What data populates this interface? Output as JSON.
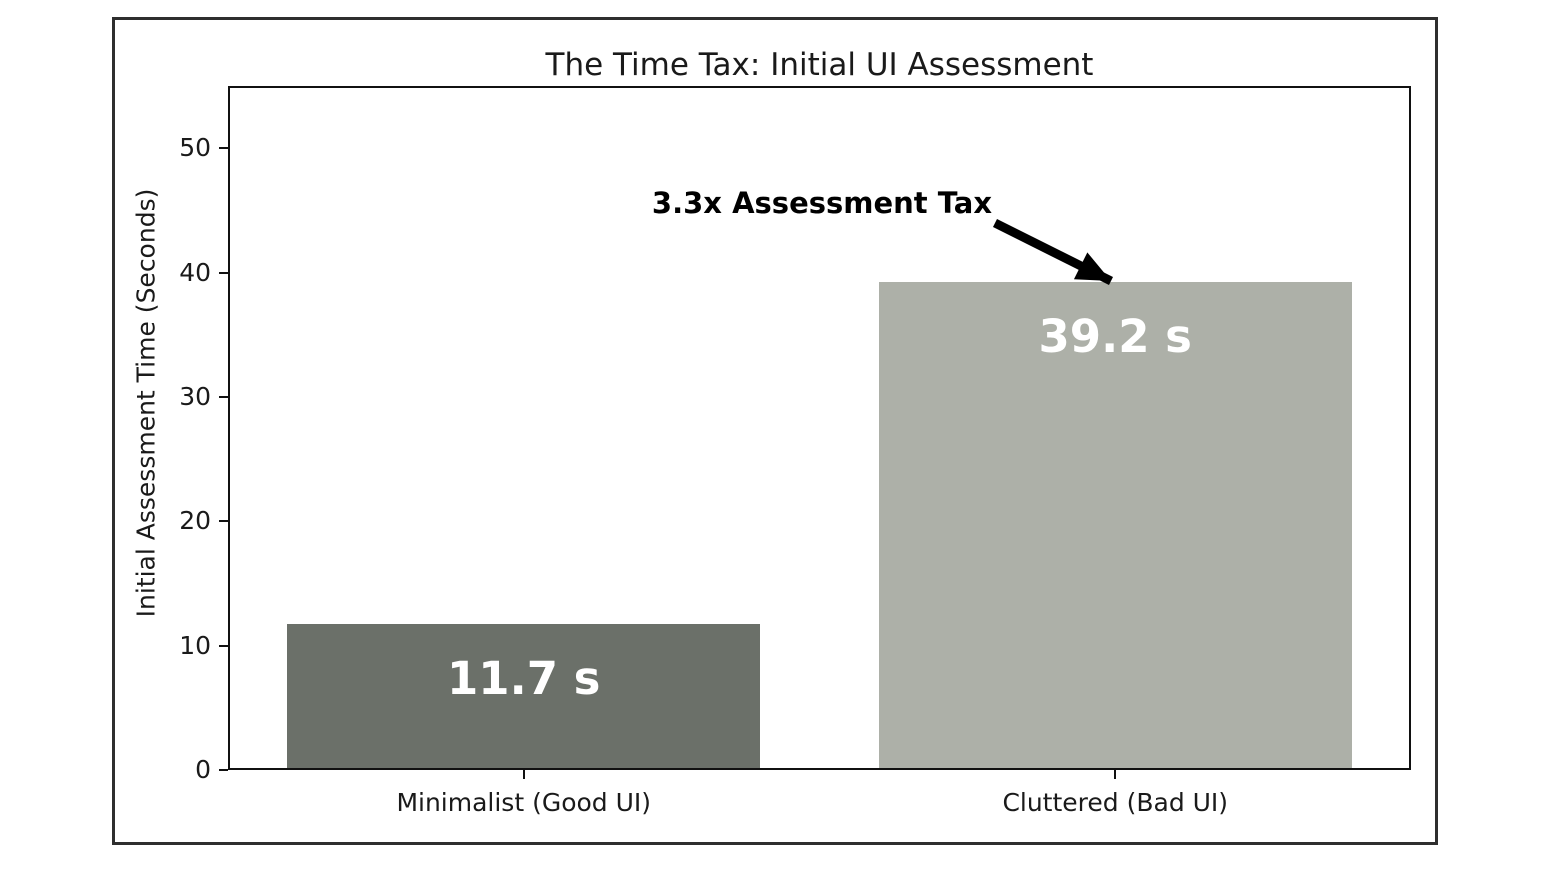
{
  "figure": {
    "background": "#ffffff",
    "border_color": "#2e2e2e"
  },
  "chart_data": {
    "type": "bar",
    "title": "The Time Tax: Initial UI Assessment",
    "ylabel": "Initial Assessment Time (Seconds)",
    "xlabel": "",
    "categories": [
      "Minimalist (Good UI)",
      "Cluttered (Bad UI)"
    ],
    "values": [
      11.7,
      39.2
    ],
    "bar_value_labels": [
      "11.7 s",
      "39.2 s"
    ],
    "bar_colors": [
      "#6b7069",
      "#adb0a8"
    ],
    "bar_label_color": "#ffffff",
    "bar_width_fraction": 0.8,
    "yticks": [
      0,
      10,
      20,
      30,
      40,
      50
    ],
    "ylim": [
      0,
      55
    ],
    "grid": false,
    "legend": null,
    "axis_color": "#111111",
    "text_color": "#1a1a1a",
    "annotation": {
      "text": "3.3x Assessment Tax",
      "points_to": "Cluttered (Bad UI)",
      "arrow_color": "#000000"
    }
  }
}
